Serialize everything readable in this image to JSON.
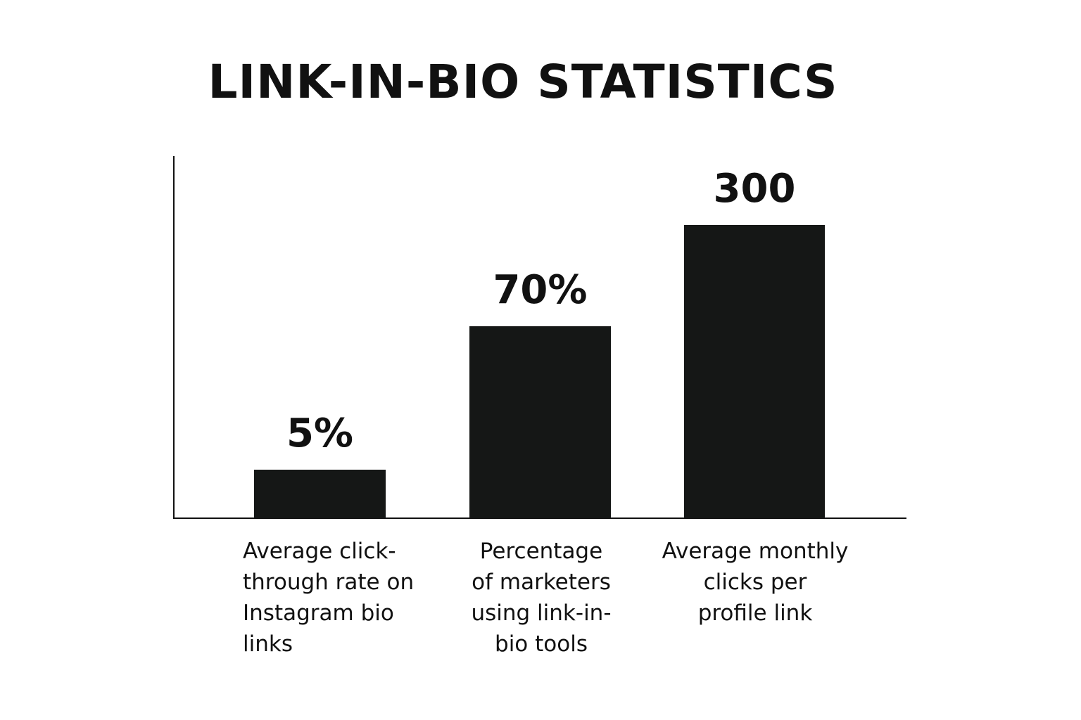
{
  "chart_data": {
    "type": "bar",
    "title": "LINK-IN-BIO STATISTICS",
    "categories": [
      [
        "Average click-",
        "through rate on",
        "Instagram bio",
        "links"
      ],
      [
        "Percentage",
        "of marketers",
        "using link-in-",
        "bio tools"
      ],
      [
        "Average monthly",
        "clicks per",
        "profile link"
      ]
    ],
    "values": [
      5,
      70,
      300
    ],
    "value_labels": [
      "5%",
      "70%",
      "300"
    ],
    "bar_color": "#151716",
    "axis_color": "#111111",
    "grid": false,
    "legend": "none"
  }
}
